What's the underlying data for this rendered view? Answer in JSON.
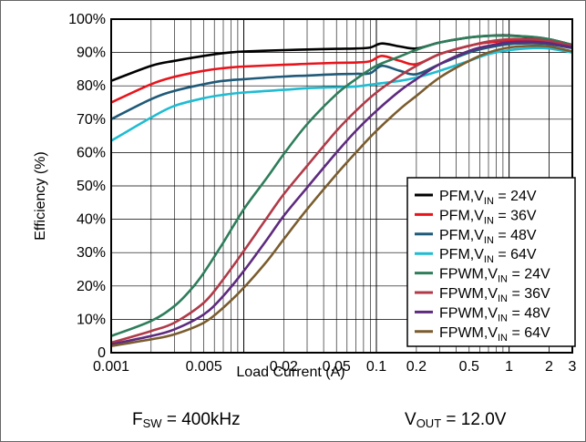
{
  "chart_data": {
    "type": "line",
    "xlabel": "Load Current (A)",
    "ylabel": "Efficiency (%)",
    "xscale": "log",
    "xlim": [
      0.001,
      3
    ],
    "ylim": [
      0,
      100
    ],
    "grid": true,
    "legend_position": "right",
    "x_ticks": [
      "0.001",
      "0.005",
      "0.02",
      "0.05",
      "0.1",
      "0.2",
      "0.5",
      "1",
      "2",
      "3"
    ],
    "y_ticks": [
      "0",
      "10%",
      "20%",
      "30%",
      "40%",
      "50%",
      "60%",
      "70%",
      "80%",
      "90%",
      "100%"
    ],
    "series": [
      {
        "name": "PFM,V_IN = 24V",
        "mode": "PFM",
        "vin": "24V",
        "color": "#000000",
        "x": [
          0.001,
          0.002,
          0.003,
          0.005,
          0.007,
          0.01,
          0.02,
          0.03,
          0.05,
          0.07,
          0.09,
          0.11,
          0.15,
          0.2,
          0.3,
          0.5,
          0.7,
          1,
          1.5,
          2,
          3
        ],
        "y": [
          81.5,
          86,
          87.5,
          89,
          89.8,
          90.3,
          90.7,
          90.9,
          91.1,
          91.2,
          91.5,
          92.7,
          91.8,
          91.2,
          93,
          94.5,
          95,
          95.1,
          94.6,
          94,
          92.3
        ]
      },
      {
        "name": "PFM,V_IN = 36V",
        "mode": "PFM",
        "vin": "36V",
        "color": "#e8141c",
        "x": [
          0.001,
          0.002,
          0.003,
          0.005,
          0.007,
          0.01,
          0.02,
          0.03,
          0.05,
          0.07,
          0.09,
          0.11,
          0.15,
          0.2,
          0.3,
          0.5,
          0.7,
          1,
          1.5,
          2,
          3
        ],
        "y": [
          75,
          80.5,
          82.7,
          84.5,
          85.3,
          85.8,
          86.3,
          86.6,
          86.9,
          87,
          87.4,
          89,
          87.5,
          86.5,
          89.5,
          92,
          93,
          93.5,
          93.5,
          93,
          91.8
        ]
      },
      {
        "name": "PFM,V_IN = 48V",
        "mode": "PFM",
        "vin": "48V",
        "color": "#1f5a79",
        "x": [
          0.001,
          0.002,
          0.003,
          0.005,
          0.007,
          0.01,
          0.02,
          0.03,
          0.05,
          0.07,
          0.09,
          0.11,
          0.15,
          0.2,
          0.3,
          0.5,
          0.7,
          1,
          1.5,
          2,
          3
        ],
        "y": [
          70,
          76,
          78.5,
          80.5,
          81.5,
          82,
          82.8,
          83.1,
          83.5,
          83.6,
          83.8,
          86,
          84.5,
          83.5,
          86.5,
          90,
          91.5,
          92.5,
          92.8,
          92.5,
          91.3
        ]
      },
      {
        "name": "PFM,V_IN = 64V",
        "mode": "PFM",
        "vin": "64V",
        "color": "#1fbcd2",
        "x": [
          0.001,
          0.002,
          0.003,
          0.005,
          0.007,
          0.01,
          0.02,
          0.03,
          0.05,
          0.07,
          0.1,
          0.15,
          0.2,
          0.3,
          0.5,
          0.7,
          1,
          1.5,
          2,
          3
        ],
        "y": [
          63.5,
          70.5,
          74,
          76.3,
          77.3,
          78,
          78.8,
          79.3,
          79.6,
          79.8,
          80.6,
          81.5,
          82.5,
          84.5,
          87.5,
          89.5,
          90.7,
          91.3,
          91.2,
          90
        ]
      },
      {
        "name": "FPWM,V_IN = 24V",
        "mode": "FPWM",
        "vin": "24V",
        "color": "#2e7d5b",
        "x": [
          0.001,
          0.002,
          0.003,
          0.004,
          0.005,
          0.007,
          0.01,
          0.015,
          0.02,
          0.03,
          0.05,
          0.07,
          0.1,
          0.15,
          0.2,
          0.3,
          0.5,
          0.7,
          1,
          1.5,
          2,
          3
        ],
        "y": [
          5,
          9.5,
          14,
          19,
          24,
          33,
          43,
          52.5,
          59.5,
          68.5,
          77.5,
          82,
          86,
          88.8,
          90.8,
          93,
          94.5,
          95,
          95,
          94.7,
          94,
          92.3
        ]
      },
      {
        "name": "FPWM,V_IN = 36V",
        "mode": "FPWM",
        "vin": "36V",
        "color": "#b03a48",
        "x": [
          0.001,
          0.002,
          0.003,
          0.005,
          0.007,
          0.01,
          0.015,
          0.02,
          0.03,
          0.05,
          0.07,
          0.1,
          0.15,
          0.2,
          0.3,
          0.5,
          0.7,
          1,
          1.5,
          2,
          3
        ],
        "y": [
          3,
          6.5,
          9,
          15,
          22,
          30.5,
          40.5,
          47.5,
          56,
          66.5,
          72.5,
          78,
          83,
          86,
          89.5,
          92,
          93.3,
          94,
          94,
          93.5,
          92
        ]
      },
      {
        "name": "FPWM,V_IN = 48V",
        "mode": "FPWM",
        "vin": "48V",
        "color": "#5e2a7e",
        "x": [
          0.001,
          0.002,
          0.003,
          0.005,
          0.007,
          0.01,
          0.015,
          0.02,
          0.03,
          0.05,
          0.07,
          0.1,
          0.15,
          0.2,
          0.3,
          0.5,
          0.7,
          1,
          1.5,
          2,
          3
        ],
        "y": [
          2.5,
          5,
          7,
          11.5,
          17,
          24.5,
          34,
          41,
          49.5,
          60,
          66.5,
          72.5,
          78.5,
          82,
          86.5,
          90.5,
          92,
          93,
          93.2,
          92.8,
          91.5
        ]
      },
      {
        "name": "FPWM,V_IN = 64V",
        "mode": "FPWM",
        "vin": "64V",
        "color": "#7a5c2e",
        "x": [
          0.001,
          0.002,
          0.003,
          0.005,
          0.007,
          0.01,
          0.015,
          0.02,
          0.03,
          0.05,
          0.07,
          0.1,
          0.15,
          0.2,
          0.3,
          0.5,
          0.7,
          1,
          1.5,
          2,
          3
        ],
        "y": [
          2,
          4,
          5.5,
          9,
          13.5,
          19.5,
          27.5,
          34,
          43,
          53.5,
          60,
          66.5,
          73,
          77,
          82.5,
          87.5,
          90,
          91.5,
          92,
          91.8,
          90.3
        ]
      }
    ]
  },
  "legend": [
    {
      "mode": "PFM",
      "sep": ",",
      "v": "V",
      "sub": "IN",
      "eq": " = 24V",
      "color": "#000000"
    },
    {
      "mode": "PFM",
      "sep": ",",
      "v": "V",
      "sub": "IN",
      "eq": " = 36V",
      "color": "#e8141c"
    },
    {
      "mode": "PFM",
      "sep": ",",
      "v": "V",
      "sub": "IN",
      "eq": " = 48V",
      "color": "#1f5a79"
    },
    {
      "mode": "PFM",
      "sep": ",",
      "v": "V",
      "sub": "IN",
      "eq": " = 64V",
      "color": "#1fbcd2"
    },
    {
      "mode": "FPWM",
      "sep": ",",
      "v": "V",
      "sub": "IN",
      "eq": " = 24V",
      "color": "#2e7d5b"
    },
    {
      "mode": "FPWM",
      "sep": ",",
      "v": "V",
      "sub": "IN",
      "eq": " = 36V",
      "color": "#b03a48"
    },
    {
      "mode": "FPWM",
      "sep": ",",
      "v": "V",
      "sub": "IN",
      "eq": " = 48V",
      "color": "#5e2a7e"
    },
    {
      "mode": "FPWM",
      "sep": ",",
      "v": "V",
      "sub": "IN",
      "eq": " = 64V",
      "color": "#7a5c2e"
    }
  ],
  "footer": {
    "fsw": {
      "main": "F",
      "sub": "SW",
      "rest": " = 400kHz"
    },
    "vout": {
      "main": "V",
      "sub": "OUT",
      "rest": " = 12.0V"
    }
  }
}
